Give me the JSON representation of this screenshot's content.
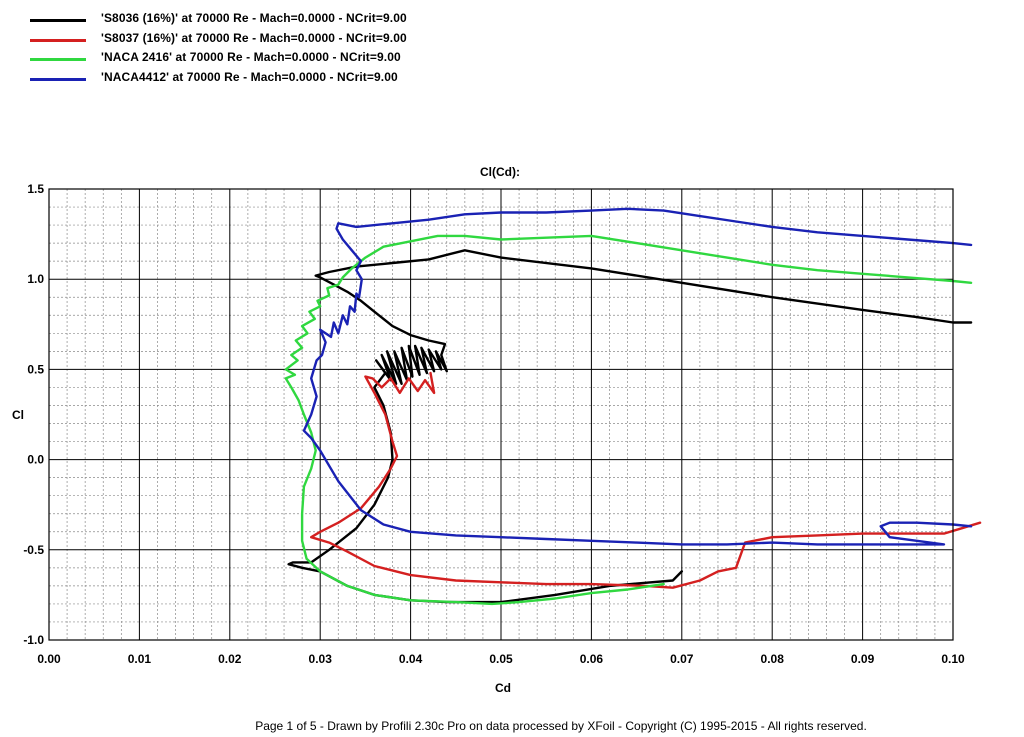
{
  "footer": "Page 1 of 5   -   Drawn by Profili 2.30c Pro on data processed by  XFoil - Copyright (C) 1995-2015 - All rights reserved.",
  "chart_data": {
    "type": "line",
    "title": "Cl(Cd):",
    "xlabel": "Cd",
    "ylabel": "Cl",
    "xlim": [
      0.0,
      0.1
    ],
    "ylim": [
      -1.0,
      1.5
    ],
    "grid": true,
    "legend_placement": "top-left",
    "x_ticks": [
      "0.00",
      "0.01",
      "0.02",
      "0.03",
      "0.04",
      "0.05",
      "0.06",
      "0.07",
      "0.08",
      "0.09",
      "0.10"
    ],
    "y_ticks": [
      "1.5",
      "1.0",
      "0.5",
      "0.0",
      "-0.5",
      "-1.0"
    ],
    "series": [
      {
        "name": "'S8036 (16%)' at 70000 Re - Mach=0.0000 - NCrit=9.00",
        "color": "#000000",
        "points": [
          [
            0.07,
            -0.62
          ],
          [
            0.069,
            -0.67
          ],
          [
            0.062,
            -0.7
          ],
          [
            0.056,
            -0.75
          ],
          [
            0.05,
            -0.79
          ],
          [
            0.044,
            -0.79
          ],
          [
            0.04,
            -0.78
          ],
          [
            0.036,
            -0.75
          ],
          [
            0.033,
            -0.7
          ],
          [
            0.03,
            -0.62
          ],
          [
            0.028,
            -0.6
          ],
          [
            0.0265,
            -0.58
          ],
          [
            0.027,
            -0.57
          ],
          [
            0.029,
            -0.57
          ],
          [
            0.031,
            -0.5
          ],
          [
            0.034,
            -0.38
          ],
          [
            0.036,
            -0.25
          ],
          [
            0.0375,
            -0.1
          ],
          [
            0.038,
            0.0
          ],
          [
            0.0378,
            0.15
          ],
          [
            0.037,
            0.3
          ],
          [
            0.036,
            0.4
          ],
          [
            0.0372,
            0.48
          ],
          [
            0.0362,
            0.55
          ],
          [
            0.0378,
            0.44
          ],
          [
            0.0368,
            0.58
          ],
          [
            0.0384,
            0.42
          ],
          [
            0.0374,
            0.6
          ],
          [
            0.039,
            0.42
          ],
          [
            0.0382,
            0.6
          ],
          [
            0.0396,
            0.44
          ],
          [
            0.039,
            0.62
          ],
          [
            0.0402,
            0.46
          ],
          [
            0.0398,
            0.63
          ],
          [
            0.041,
            0.47
          ],
          [
            0.0405,
            0.63
          ],
          [
            0.0418,
            0.48
          ],
          [
            0.0412,
            0.62
          ],
          [
            0.0426,
            0.49
          ],
          [
            0.042,
            0.61
          ],
          [
            0.0434,
            0.5
          ],
          [
            0.0428,
            0.6
          ],
          [
            0.044,
            0.49
          ],
          [
            0.0434,
            0.58
          ],
          [
            0.0438,
            0.64
          ],
          [
            0.042,
            0.66
          ],
          [
            0.04,
            0.69
          ],
          [
            0.038,
            0.74
          ],
          [
            0.036,
            0.82
          ],
          [
            0.0345,
            0.88
          ],
          [
            0.033,
            0.93
          ],
          [
            0.0315,
            0.97
          ],
          [
            0.03,
            1.01
          ],
          [
            0.0295,
            1.02
          ],
          [
            0.031,
            1.04
          ],
          [
            0.034,
            1.07
          ],
          [
            0.038,
            1.09
          ],
          [
            0.042,
            1.11
          ],
          [
            0.046,
            1.16
          ],
          [
            0.05,
            1.12
          ],
          [
            0.06,
            1.06
          ],
          [
            0.07,
            0.98
          ],
          [
            0.08,
            0.9
          ],
          [
            0.09,
            0.83
          ],
          [
            0.096,
            0.79
          ],
          [
            0.1,
            0.76
          ],
          [
            0.102,
            0.76
          ]
        ]
      },
      {
        "name": "'S8037 (16%)' at 70000 Re - Mach=0.0000 - NCrit=9.00",
        "color": "#d42020",
        "points": [
          [
            0.103,
            -0.35
          ],
          [
            0.101,
            -0.38
          ],
          [
            0.099,
            -0.41
          ],
          [
            0.095,
            -0.41
          ],
          [
            0.09,
            -0.41
          ],
          [
            0.085,
            -0.42
          ],
          [
            0.08,
            -0.43
          ],
          [
            0.077,
            -0.46
          ],
          [
            0.076,
            -0.6
          ],
          [
            0.074,
            -0.62
          ],
          [
            0.072,
            -0.67
          ],
          [
            0.069,
            -0.71
          ],
          [
            0.066,
            -0.7
          ],
          [
            0.06,
            -0.69
          ],
          [
            0.055,
            -0.69
          ],
          [
            0.05,
            -0.68
          ],
          [
            0.045,
            -0.67
          ],
          [
            0.04,
            -0.64
          ],
          [
            0.036,
            -0.59
          ],
          [
            0.033,
            -0.51
          ],
          [
            0.031,
            -0.46
          ],
          [
            0.029,
            -0.43
          ],
          [
            0.03,
            -0.4
          ],
          [
            0.032,
            -0.35
          ],
          [
            0.0345,
            -0.27
          ],
          [
            0.0365,
            -0.15
          ],
          [
            0.0378,
            -0.05
          ],
          [
            0.0385,
            0.02
          ],
          [
            0.038,
            0.1
          ],
          [
            0.0372,
            0.25
          ],
          [
            0.036,
            0.37
          ],
          [
            0.035,
            0.46
          ],
          [
            0.0358,
            0.45
          ],
          [
            0.0368,
            0.4
          ],
          [
            0.0378,
            0.45
          ],
          [
            0.0388,
            0.37
          ],
          [
            0.0398,
            0.45
          ],
          [
            0.0408,
            0.38
          ],
          [
            0.0416,
            0.44
          ],
          [
            0.0426,
            0.37
          ],
          [
            0.0422,
            0.48
          ]
        ]
      },
      {
        "name": "'NACA 2416' at 70000 Re - Mach=0.0000 - NCrit=9.00",
        "color": "#30d840",
        "points": [
          [
            0.068,
            -0.69
          ],
          [
            0.064,
            -0.72
          ],
          [
            0.06,
            -0.74
          ],
          [
            0.056,
            -0.77
          ],
          [
            0.052,
            -0.79
          ],
          [
            0.049,
            -0.8
          ],
          [
            0.045,
            -0.79
          ],
          [
            0.04,
            -0.78
          ],
          [
            0.036,
            -0.75
          ],
          [
            0.033,
            -0.7
          ],
          [
            0.03,
            -0.62
          ],
          [
            0.0285,
            -0.55
          ],
          [
            0.028,
            -0.45
          ],
          [
            0.028,
            -0.3
          ],
          [
            0.0282,
            -0.15
          ],
          [
            0.029,
            -0.05
          ],
          [
            0.0295,
            0.05
          ],
          [
            0.029,
            0.15
          ],
          [
            0.0282,
            0.25
          ],
          [
            0.0276,
            0.33
          ],
          [
            0.0268,
            0.4
          ],
          [
            0.0262,
            0.45
          ],
          [
            0.0272,
            0.47
          ],
          [
            0.0262,
            0.5
          ],
          [
            0.0275,
            0.55
          ],
          [
            0.0268,
            0.58
          ],
          [
            0.028,
            0.62
          ],
          [
            0.0273,
            0.66
          ],
          [
            0.0286,
            0.7
          ],
          [
            0.028,
            0.74
          ],
          [
            0.0294,
            0.78
          ],
          [
            0.0288,
            0.82
          ],
          [
            0.03,
            0.85
          ],
          [
            0.0297,
            0.88
          ],
          [
            0.031,
            0.91
          ],
          [
            0.0308,
            0.95
          ],
          [
            0.032,
            0.97
          ],
          [
            0.0325,
            1.01
          ],
          [
            0.0335,
            1.06
          ],
          [
            0.035,
            1.12
          ],
          [
            0.037,
            1.18
          ],
          [
            0.04,
            1.21
          ],
          [
            0.043,
            1.24
          ],
          [
            0.046,
            1.24
          ],
          [
            0.05,
            1.22
          ],
          [
            0.055,
            1.23
          ],
          [
            0.06,
            1.24
          ],
          [
            0.065,
            1.2
          ],
          [
            0.07,
            1.16
          ],
          [
            0.075,
            1.12
          ],
          [
            0.08,
            1.08
          ],
          [
            0.085,
            1.05
          ],
          [
            0.09,
            1.03
          ],
          [
            0.095,
            1.01
          ],
          [
            0.1,
            0.99
          ],
          [
            0.102,
            0.98
          ]
        ]
      },
      {
        "name": "'NACA4412' at 70000 Re - Mach=0.0000 - NCrit=9.00",
        "color": "#1a22b4",
        "points": [
          [
            0.102,
            -0.37
          ],
          [
            0.1,
            -0.36
          ],
          [
            0.096,
            -0.35
          ],
          [
            0.093,
            -0.35
          ],
          [
            0.092,
            -0.37
          ],
          [
            0.093,
            -0.43
          ],
          [
            0.096,
            -0.45
          ],
          [
            0.099,
            -0.47
          ],
          [
            0.094,
            -0.47
          ],
          [
            0.09,
            -0.47
          ],
          [
            0.085,
            -0.47
          ],
          [
            0.08,
            -0.46
          ],
          [
            0.075,
            -0.47
          ],
          [
            0.07,
            -0.47
          ],
          [
            0.065,
            -0.46
          ],
          [
            0.06,
            -0.45
          ],
          [
            0.055,
            -0.44
          ],
          [
            0.05,
            -0.43
          ],
          [
            0.045,
            -0.42
          ],
          [
            0.04,
            -0.4
          ],
          [
            0.037,
            -0.36
          ],
          [
            0.0345,
            -0.28
          ],
          [
            0.032,
            -0.12
          ],
          [
            0.03,
            0.05
          ],
          [
            0.029,
            0.12
          ],
          [
            0.0282,
            0.16
          ],
          [
            0.029,
            0.25
          ],
          [
            0.0296,
            0.35
          ],
          [
            0.029,
            0.45
          ],
          [
            0.0296,
            0.55
          ],
          [
            0.0302,
            0.58
          ],
          [
            0.0306,
            0.65
          ],
          [
            0.03,
            0.72
          ],
          [
            0.0312,
            0.68
          ],
          [
            0.0315,
            0.76
          ],
          [
            0.032,
            0.7
          ],
          [
            0.0325,
            0.8
          ],
          [
            0.033,
            0.75
          ],
          [
            0.0333,
            0.85
          ],
          [
            0.0338,
            0.82
          ],
          [
            0.034,
            0.92
          ],
          [
            0.0343,
            0.9
          ],
          [
            0.0346,
            1.0
          ],
          [
            0.034,
            1.05
          ],
          [
            0.0345,
            1.1
          ],
          [
            0.0335,
            1.16
          ],
          [
            0.0325,
            1.22
          ],
          [
            0.0318,
            1.28
          ],
          [
            0.032,
            1.31
          ],
          [
            0.034,
            1.29
          ],
          [
            0.038,
            1.31
          ],
          [
            0.042,
            1.33
          ],
          [
            0.046,
            1.36
          ],
          [
            0.05,
            1.37
          ],
          [
            0.055,
            1.37
          ],
          [
            0.06,
            1.38
          ],
          [
            0.064,
            1.39
          ],
          [
            0.068,
            1.38
          ],
          [
            0.072,
            1.35
          ],
          [
            0.076,
            1.32
          ],
          [
            0.08,
            1.29
          ],
          [
            0.085,
            1.26
          ],
          [
            0.09,
            1.24
          ],
          [
            0.095,
            1.22
          ],
          [
            0.1,
            1.2
          ],
          [
            0.102,
            1.19
          ]
        ]
      }
    ]
  }
}
